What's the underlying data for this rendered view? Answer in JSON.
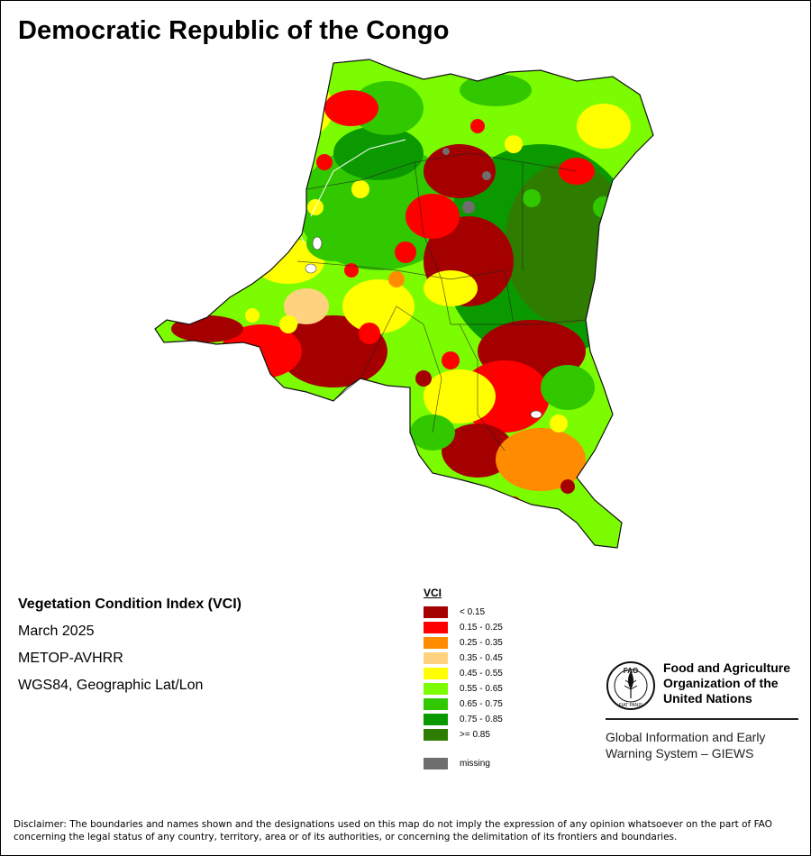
{
  "title": "Democratic Republic of the Congo",
  "info": {
    "index_name": "Vegetation Condition Index (VCI)",
    "period": "March 2025",
    "sensor": "METOP-AVHRR",
    "projection": "WGS84, Geographic Lat/Lon"
  },
  "legend": {
    "title": "VCI",
    "items": [
      {
        "label": "< 0.15",
        "color": "#a50000"
      },
      {
        "label": "0.15 - 0.25",
        "color": "#ff0000"
      },
      {
        "label": "0.25 - 0.35",
        "color": "#ff8c00"
      },
      {
        "label": "0.35 - 0.45",
        "color": "#ffd280"
      },
      {
        "label": "0.45 - 0.55",
        "color": "#ffff00"
      },
      {
        "label": "0.55 - 0.65",
        "color": "#7cfc00"
      },
      {
        "label": "0.65 - 0.75",
        "color": "#32c800"
      },
      {
        "label": "0.75 - 0.85",
        "color": "#0a9a00"
      },
      {
        "label": ">= 0.85",
        "color": "#2e7d00"
      }
    ],
    "missing": {
      "label": "missing",
      "color": "#6e6e6e"
    }
  },
  "fao": {
    "logo_text": "FAO",
    "logo_ring_text": "FIAT PANIS",
    "org_line1": "Food and Agriculture",
    "org_line2": "Organization of the",
    "org_line3": "United Nations",
    "giews_line1": "Global Information and Early",
    "giews_line2": "Warning System – GIEWS"
  },
  "disclaimer_line1": "Disclaimer: The boundaries and names shown and the designations used on this map do not imply the expression of any opinion whatsoever on the part of FAO",
  "disclaimer_line2": "concerning the legal status of any country, territory, area or of its authorities, or concerning the delimitation of its frontiers and boundaries."
}
